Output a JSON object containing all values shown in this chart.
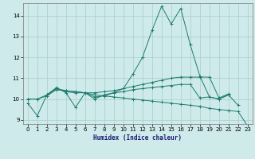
{
  "xlabel": "Humidex (Indice chaleur)",
  "background_color": "#ceeaea",
  "grid_color": "#aacccc",
  "line_color": "#1e7b6e",
  "xlim": [
    -0.5,
    23.5
  ],
  "ylim": [
    8.8,
    14.6
  ],
  "yticks": [
    9,
    10,
    11,
    12,
    13,
    14
  ],
  "xticks": [
    0,
    1,
    2,
    3,
    4,
    5,
    6,
    7,
    8,
    9,
    10,
    11,
    12,
    13,
    14,
    15,
    16,
    17,
    18,
    19,
    20,
    21,
    22,
    23
  ],
  "series1_x": [
    0,
    1,
    2,
    3,
    4,
    5,
    6,
    7,
    8,
    9,
    10,
    11,
    12,
    13,
    14,
    15,
    16,
    17,
    18,
    19,
    20,
    21,
    22
  ],
  "series1_y": [
    9.8,
    9.2,
    10.2,
    10.55,
    10.3,
    9.6,
    10.3,
    10.0,
    10.2,
    10.3,
    10.5,
    11.2,
    12.0,
    13.3,
    14.45,
    13.6,
    14.35,
    12.6,
    11.1,
    10.1,
    10.0,
    10.2,
    9.7
  ],
  "series2_x": [
    2,
    3,
    4,
    5,
    6,
    7,
    8,
    9,
    10,
    11,
    12,
    13,
    14,
    15,
    16,
    17,
    18,
    19,
    20,
    21
  ],
  "series2_y": [
    10.2,
    10.5,
    10.35,
    10.3,
    10.3,
    10.3,
    10.35,
    10.4,
    10.5,
    10.6,
    10.7,
    10.8,
    10.9,
    11.0,
    11.05,
    11.05,
    11.05,
    11.05,
    10.05,
    10.25
  ],
  "series3_x": [
    0,
    1,
    2,
    3,
    4,
    5,
    6,
    7,
    8,
    9,
    10,
    11,
    12,
    13,
    14,
    15,
    16,
    17,
    18,
    19,
    20,
    21
  ],
  "series3_y": [
    10.0,
    10.0,
    10.2,
    10.5,
    10.4,
    10.35,
    10.3,
    10.1,
    10.15,
    10.3,
    10.35,
    10.45,
    10.5,
    10.55,
    10.6,
    10.65,
    10.7,
    10.7,
    10.05,
    10.1,
    10.0,
    10.2
  ],
  "series4_x": [
    0,
    1,
    2,
    3,
    4,
    5,
    6,
    7,
    8,
    9,
    10,
    11,
    12,
    13,
    14,
    15,
    16,
    17,
    18,
    19,
    20,
    21,
    22,
    23
  ],
  "series4_y": [
    10.0,
    10.0,
    10.15,
    10.45,
    10.4,
    10.35,
    10.3,
    10.2,
    10.15,
    10.1,
    10.05,
    10.0,
    9.95,
    9.9,
    9.85,
    9.8,
    9.75,
    9.7,
    9.65,
    9.55,
    9.5,
    9.45,
    9.4,
    8.7
  ]
}
